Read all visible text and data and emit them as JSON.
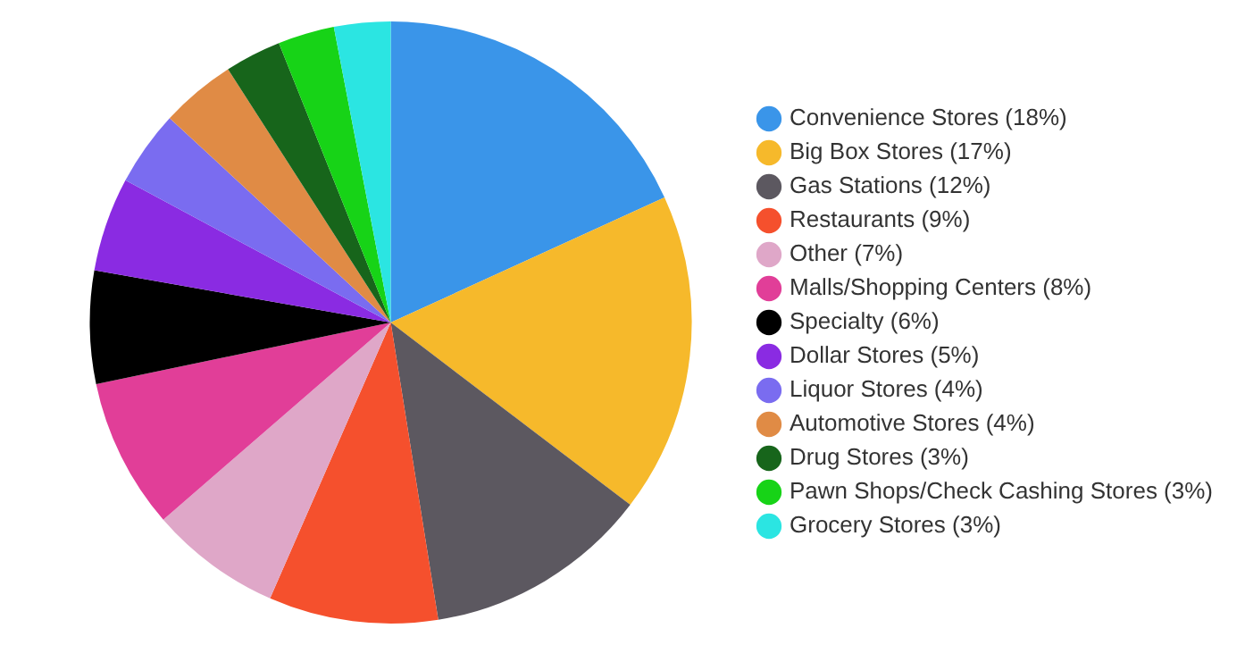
{
  "chart_data": {
    "type": "pie",
    "categories": [
      "Convenience Stores (18%)",
      "Big Box Stores (17%)",
      "Gas Stations (12%)",
      "Restaurants (9%)",
      "Other (7%)",
      "Malls/Shopping Centers (8%)",
      "Specialty (6%)",
      "Dollar Stores (5%)",
      "Liquor Stores (4%)",
      "Automotive Stores (4%)",
      "Drug Stores (3%)",
      "Pawn Shops/Check Cashing Stores (3%)",
      "Grocery Stores (3%)"
    ],
    "values": [
      18,
      17,
      12,
      9,
      7,
      8,
      6,
      5,
      4,
      4,
      3,
      3,
      3
    ],
    "colors": [
      "#3a95e9",
      "#f6b92b",
      "#5c5860",
      "#f5502d",
      "#dfa7c8",
      "#e13e98",
      "#000000",
      "#8a2be2",
      "#7a6cf0",
      "#e08b45",
      "#17651b",
      "#17d317",
      "#2be5e2"
    ],
    "legend": "right"
  }
}
